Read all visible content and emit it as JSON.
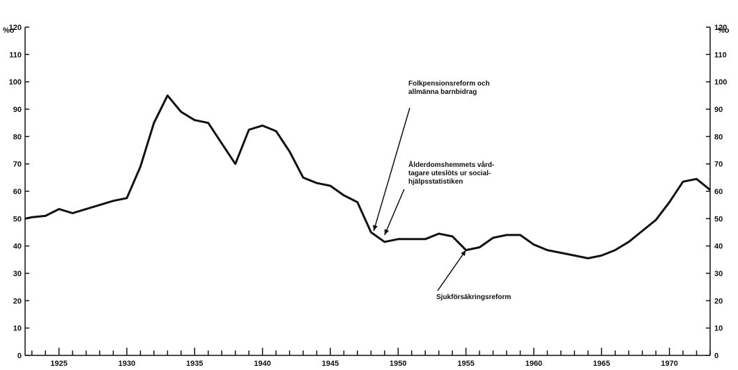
{
  "chart_data": {
    "type": "line",
    "title": "",
    "xlabel": "",
    "ylabel": "",
    "y_unit_left": "%o",
    "y_unit_right": "%o",
    "xlim": [
      1922.5,
      1973.0
    ],
    "ylim": [
      0,
      120
    ],
    "grid": false,
    "line_color": "#111111",
    "x_ticks": [
      1925,
      1930,
      1935,
      1940,
      1945,
      1950,
      1955,
      1960,
      1965,
      1970
    ],
    "x_tick_labels": [
      "1925",
      "1930",
      "1935",
      "1940",
      "1945",
      "1950",
      "1955",
      "1960",
      "1965",
      "1970"
    ],
    "y_ticks": [
      0,
      10,
      20,
      30,
      40,
      50,
      60,
      70,
      80,
      90,
      100,
      110,
      120
    ],
    "y_tick_labels": [
      "0",
      "10",
      "20",
      "30",
      "40",
      "50",
      "60",
      "70",
      "80",
      "90",
      "100",
      "110",
      "120"
    ],
    "series": [
      {
        "x": [
          1922.5,
          1923,
          1924,
          1925,
          1926,
          1927,
          1928,
          1929,
          1930,
          1931,
          1932,
          1933,
          1934,
          1935,
          1936,
          1937,
          1938,
          1939,
          1940,
          1941,
          1942,
          1943,
          1944,
          1945,
          1946,
          1947,
          1948,
          1949,
          1950,
          1951,
          1952,
          1953,
          1954,
          1955,
          1956,
          1957,
          1958,
          1959,
          1960,
          1961,
          1962,
          1963,
          1964,
          1965,
          1966,
          1967,
          1968,
          1969,
          1970,
          1971,
          1972,
          1973
        ],
        "values": [
          50,
          50.5,
          51,
          53.5,
          52,
          53.5,
          55,
          56.5,
          57.5,
          69,
          85,
          95,
          89,
          86,
          85,
          77.5,
          70,
          82.5,
          84,
          82,
          74.5,
          65,
          63,
          62,
          58.5,
          56,
          45,
          41.5,
          42.5,
          42.5,
          42.5,
          44.5,
          43.5,
          38.5,
          39.5,
          43,
          44,
          44,
          40.5,
          38.5,
          37.5,
          36.5,
          35.5,
          36.5,
          38.5,
          41.5,
          45.5,
          49.5,
          56,
          63.5,
          64.5,
          60.5
        ]
      }
    ],
    "annotations": [
      {
        "lines": [
          "Folkpensionsreform och",
          "allmänna barnbidrag"
        ],
        "x": 1948.2,
        "y": 45.5
      },
      {
        "lines": [
          "Ålderdomshemmets vård-",
          "tagare uteslöts ur social-",
          "hjälpsstatistiken"
        ],
        "x": 1949.0,
        "y": 44.0
      },
      {
        "lines": [
          "Sjukförsäkringsreform"
        ],
        "x": 1955.0,
        "y": 38.5
      }
    ]
  }
}
